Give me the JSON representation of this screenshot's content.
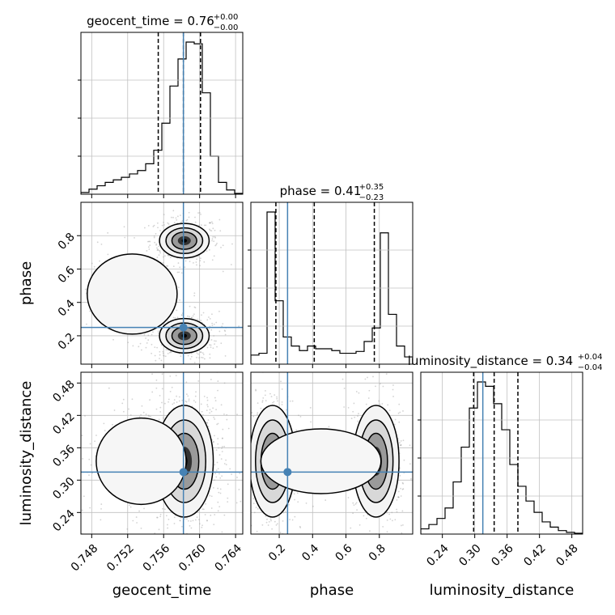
{
  "chart_data": {
    "type": "corner",
    "parameters": [
      "geocent_time",
      "phase",
      "luminosity_distance"
    ],
    "colors": {
      "truth": "#4682b4",
      "line": "#000000",
      "grid": "#c0c0c0",
      "scatter": "#9e9e9e"
    },
    "titles": {
      "geocent_time": {
        "name": "geocent_time",
        "value": "0.76",
        "plus": "+0.00",
        "minus": "−0.00"
      },
      "phase": {
        "name": "phase",
        "value": "0.41",
        "plus": "+0.35",
        "minus": "−0.23"
      },
      "luminosity_distance": {
        "name": "luminosity_distance",
        "value": "0.34",
        "plus": "+0.04",
        "minus": "−0.04"
      }
    },
    "axes": {
      "geocent_time": {
        "label": "geocent_time",
        "range": [
          0.7468,
          0.7648
        ],
        "ticks": [
          0.748,
          0.752,
          0.756,
          0.76,
          0.764
        ],
        "tick_labels": [
          "0.748",
          "0.752",
          "0.756",
          "0.760",
          "0.764"
        ]
      },
      "phase": {
        "label": "phase",
        "range": [
          0.03,
          1.0
        ],
        "ticks": [
          0.2,
          0.4,
          0.6,
          0.8
        ],
        "tick_labels": [
          "0.2",
          "0.4",
          "0.6",
          "0.8"
        ]
      },
      "luminosity_distance": {
        "label": "luminosity_distance",
        "range": [
          0.2,
          0.5
        ],
        "ticks": [
          0.24,
          0.3,
          0.36,
          0.42,
          0.48
        ],
        "tick_labels": [
          "0.24",
          "0.30",
          "0.36",
          "0.42",
          "0.48"
        ]
      }
    },
    "truths": {
      "geocent_time": 0.7582,
      "phase": 0.25,
      "luminosity_distance": 0.315
    },
    "quantiles": {
      "geocent_time": [
        0.7554,
        0.7582,
        0.7601
      ],
      "phase": [
        0.18,
        0.41,
        0.77
      ],
      "luminosity_distance": [
        0.298,
        0.336,
        0.38
      ]
    },
    "histograms": {
      "geocent_time": {
        "edges_start": 0.7468,
        "bin_width": 0.0009,
        "counts": [
          2,
          6,
          10,
          14,
          17,
          20,
          24,
          28,
          36,
          52,
          84,
          128,
          160,
          180,
          178,
          120,
          45,
          14,
          5,
          1
        ]
      },
      "phase": {
        "edges_start": 0.03,
        "bin_width": 0.0485,
        "counts": [
          10,
          12,
          168,
          70,
          30,
          20,
          15,
          20,
          17,
          17,
          15,
          12,
          12,
          14,
          25,
          40,
          145,
          55,
          20,
          8
        ]
      },
      "luminosity_distance": {
        "edges_start": 0.2,
        "bin_width": 0.015,
        "counts": [
          6,
          11,
          18,
          30,
          60,
          100,
          145,
          175,
          170,
          150,
          120,
          80,
          55,
          38,
          25,
          14,
          8,
          4,
          2,
          1
        ]
      }
    },
    "density_2d": {
      "phase_vs_geocent_time": {
        "blobs": [
          {
            "cx": 0.7583,
            "cy": 0.77,
            "sx": 0.0012,
            "sy": 0.045,
            "w": 1.0
          },
          {
            "cx": 0.7583,
            "cy": 0.2,
            "sx": 0.0012,
            "sy": 0.045,
            "w": 1.0
          },
          {
            "cx": 0.7525,
            "cy": 0.45,
            "sx": 0.0025,
            "sy": 0.12,
            "w": 0.25
          }
        ]
      },
      "luminosity_distance_vs_geocent_time": {
        "blobs": [
          {
            "cx": 0.7583,
            "cy": 0.335,
            "sx": 0.0014,
            "sy": 0.045,
            "w": 1.0
          },
          {
            "cx": 0.7535,
            "cy": 0.335,
            "sx": 0.0025,
            "sy": 0.04,
            "w": 0.3
          }
        ]
      },
      "luminosity_distance_vs_phase": {
        "blobs": [
          {
            "cx": 0.16,
            "cy": 0.335,
            "sx": 0.06,
            "sy": 0.045,
            "w": 1.0
          },
          {
            "cx": 0.78,
            "cy": 0.335,
            "sx": 0.06,
            "sy": 0.045,
            "w": 0.95
          },
          {
            "cx": 0.45,
            "cy": 0.335,
            "sx": 0.18,
            "sy": 0.03,
            "w": 0.15
          }
        ]
      }
    },
    "grid": true
  }
}
